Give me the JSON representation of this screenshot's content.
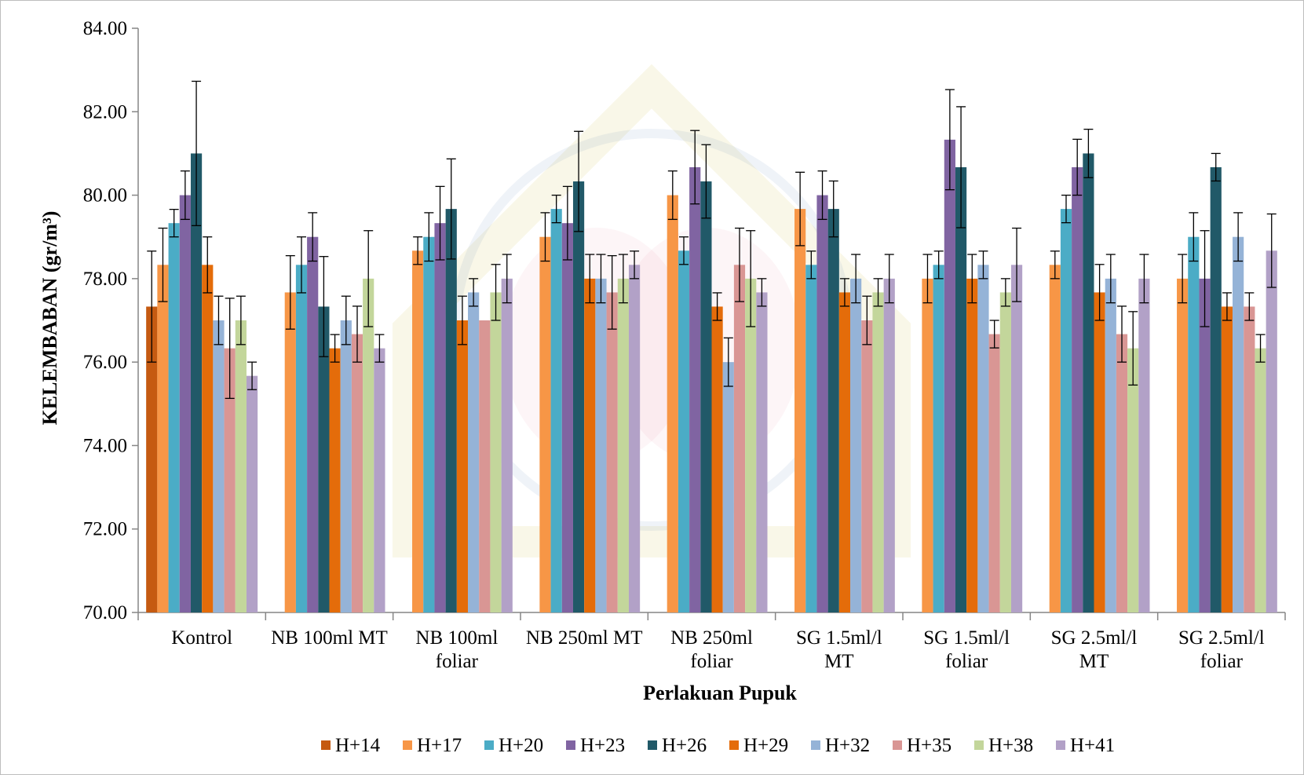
{
  "chart_data": {
    "type": "bar",
    "xlabel": "Perlakuan Pupuk",
    "ylabel": "KELEMBABAN (gr/m³)",
    "ylim": [
      70,
      84
    ],
    "yticks": [
      "70.00",
      "72.00",
      "74.00",
      "76.00",
      "78.00",
      "80.00",
      "82.00",
      "84.00"
    ],
    "grid": false,
    "legend_position": "bottom",
    "categories": [
      [
        "Kontrol"
      ],
      [
        "NB 100ml MT"
      ],
      [
        "NB 100ml",
        "foliar"
      ],
      [
        "NB 250ml MT"
      ],
      [
        "NB 250ml",
        "foliar"
      ],
      [
        "SG 1.5ml/l",
        "MT"
      ],
      [
        "SG 1.5ml/l",
        "foliar"
      ],
      [
        "SG 2.5ml/l",
        "MT"
      ],
      [
        "SG 2.5ml/l",
        "foliar"
      ]
    ],
    "series": [
      {
        "name": "H+14",
        "color": "#c55a11",
        "values": [
          77.33,
          null,
          null,
          null,
          null,
          null,
          null,
          null,
          null
        ],
        "errors": [
          1.33,
          0,
          0,
          0,
          0,
          0,
          0,
          0,
          0
        ]
      },
      {
        "name": "H+17",
        "color": "#f79646",
        "values": [
          78.33,
          77.67,
          78.67,
          79.0,
          80.0,
          79.67,
          78.0,
          78.33,
          78.0
        ],
        "errors": [
          0.88,
          0.88,
          0.33,
          0.58,
          0.58,
          0.88,
          0.58,
          0.33,
          0.58
        ]
      },
      {
        "name": "H+20",
        "color": "#4bacc6",
        "values": [
          79.33,
          78.33,
          79.0,
          79.67,
          78.67,
          78.33,
          78.33,
          79.67,
          79.0
        ],
        "errors": [
          0.33,
          0.67,
          0.58,
          0.33,
          0.33,
          0.33,
          0.33,
          0.33,
          0.58
        ]
      },
      {
        "name": "H+23",
        "color": "#8064a2",
        "values": [
          80.0,
          79.0,
          79.33,
          79.33,
          80.67,
          80.0,
          81.33,
          80.67,
          78.0
        ],
        "errors": [
          0.58,
          0.58,
          0.88,
          0.88,
          0.88,
          0.58,
          1.2,
          0.67,
          1.15
        ]
      },
      {
        "name": "H+26",
        "color": "#215968",
        "values": [
          81.0,
          77.33,
          79.67,
          80.33,
          80.33,
          79.67,
          80.67,
          81.0,
          80.67
        ],
        "errors": [
          1.73,
          1.2,
          1.2,
          1.2,
          0.88,
          0.67,
          1.45,
          0.58,
          0.33
        ]
      },
      {
        "name": "H+29",
        "color": "#e46c0a",
        "values": [
          78.33,
          76.33,
          77.0,
          78.0,
          77.33,
          77.67,
          78.0,
          77.67,
          77.33
        ],
        "errors": [
          0.67,
          0.33,
          0.58,
          0.58,
          0.33,
          0.33,
          0.58,
          0.67,
          0.33
        ]
      },
      {
        "name": "H+32",
        "color": "#95b3d7",
        "values": [
          77.0,
          77.0,
          77.67,
          78.0,
          76.0,
          78.0,
          78.33,
          78.0,
          79.0
        ],
        "errors": [
          0.58,
          0.58,
          0.33,
          0.58,
          0.58,
          0.58,
          0.33,
          0.58,
          0.58
        ]
      },
      {
        "name": "H+35",
        "color": "#d99694",
        "values": [
          76.33,
          76.67,
          77.0,
          77.67,
          78.33,
          77.0,
          76.67,
          76.67,
          77.33
        ],
        "errors": [
          1.2,
          0.67,
          0.0,
          0.88,
          0.88,
          0.58,
          0.33,
          0.67,
          0.33
        ]
      },
      {
        "name": "H+38",
        "color": "#c3d69b",
        "values": [
          77.0,
          78.0,
          77.67,
          78.0,
          78.0,
          77.67,
          77.67,
          76.33,
          76.33
        ],
        "errors": [
          0.58,
          1.15,
          0.67,
          0.58,
          1.15,
          0.33,
          0.33,
          0.88,
          0.33
        ]
      },
      {
        "name": "H+41",
        "color": "#b2a1c7",
        "values": [
          75.67,
          76.33,
          78.0,
          78.33,
          77.67,
          78.0,
          78.33,
          78.0,
          78.67
        ],
        "errors": [
          0.33,
          0.33,
          0.58,
          0.33,
          0.33,
          0.58,
          0.88,
          0.58,
          0.88
        ]
      }
    ]
  }
}
